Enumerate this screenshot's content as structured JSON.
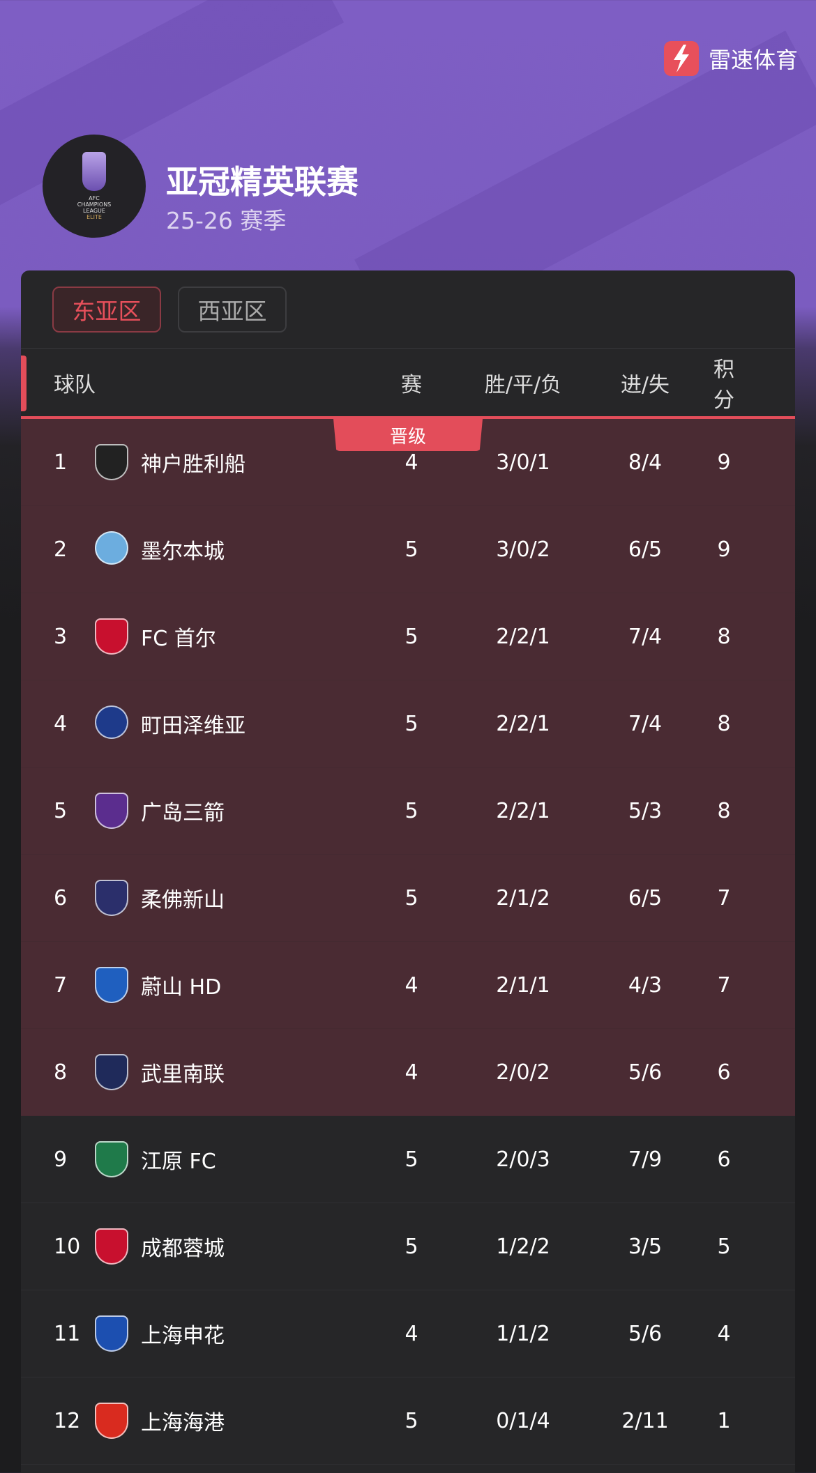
{
  "brand": {
    "name": "雷速体育",
    "icon": "lightning-bolt-icon",
    "color": "#e8505b"
  },
  "league": {
    "title": "亚冠精英联赛",
    "season": "25-26 赛季",
    "logo_text": "AFC CHAMPIONS LEAGUE ELITE"
  },
  "tabs": [
    {
      "label": "东亚区",
      "active": true
    },
    {
      "label": "西亚区",
      "active": false
    }
  ],
  "table": {
    "headers": {
      "team": "球队",
      "played": "赛",
      "wdl": "胜/平/负",
      "goals": "进/失",
      "points": "积分"
    },
    "promotion_label": "晋级",
    "colors": {
      "promotion_row": "#4a2b33",
      "accent": "#e34d5a",
      "row": "#262628"
    },
    "rows": [
      {
        "rank": "1",
        "team": "神户胜利船",
        "played": "4",
        "wdl": "3/0/1",
        "goals": "8/4",
        "points": "9",
        "promoted": true,
        "crest": "#222222"
      },
      {
        "rank": "2",
        "team": "墨尔本城",
        "played": "5",
        "wdl": "3/0/2",
        "goals": "6/5",
        "points": "9",
        "promoted": true,
        "crest": "#6caddf"
      },
      {
        "rank": "3",
        "team": "FC 首尔",
        "played": "5",
        "wdl": "2/2/1",
        "goals": "7/4",
        "points": "8",
        "promoted": true,
        "crest": "#c8102e"
      },
      {
        "rank": "4",
        "team": "町田泽维亚",
        "played": "5",
        "wdl": "2/2/1",
        "goals": "7/4",
        "points": "8",
        "promoted": true,
        "crest": "#1e3a8a"
      },
      {
        "rank": "5",
        "team": "广岛三箭",
        "played": "5",
        "wdl": "2/2/1",
        "goals": "5/3",
        "points": "8",
        "promoted": true,
        "crest": "#5b2d8e"
      },
      {
        "rank": "6",
        "team": "柔佛新山",
        "played": "5",
        "wdl": "2/1/2",
        "goals": "6/5",
        "points": "7",
        "promoted": true,
        "crest": "#2b2f6b"
      },
      {
        "rank": "7",
        "team": "蔚山 HD",
        "played": "4",
        "wdl": "2/1/1",
        "goals": "4/3",
        "points": "7",
        "promoted": true,
        "crest": "#1f5fbf"
      },
      {
        "rank": "8",
        "team": "武里南联",
        "played": "4",
        "wdl": "2/0/2",
        "goals": "5/6",
        "points": "6",
        "promoted": true,
        "crest": "#1f2a5a"
      },
      {
        "rank": "9",
        "team": "江原 FC",
        "played": "5",
        "wdl": "2/0/3",
        "goals": "7/9",
        "points": "6",
        "promoted": false,
        "crest": "#1f7a4a"
      },
      {
        "rank": "10",
        "team": "成都蓉城",
        "played": "5",
        "wdl": "1/2/2",
        "goals": "3/5",
        "points": "5",
        "promoted": false,
        "crest": "#c8102e"
      },
      {
        "rank": "11",
        "team": "上海申花",
        "played": "4",
        "wdl": "1/1/2",
        "goals": "5/6",
        "points": "4",
        "promoted": false,
        "crest": "#1c4fb0"
      },
      {
        "rank": "12",
        "team": "上海海港",
        "played": "5",
        "wdl": "0/1/4",
        "goals": "2/11",
        "points": "1",
        "promoted": false,
        "crest": "#d92b1f"
      }
    ]
  }
}
